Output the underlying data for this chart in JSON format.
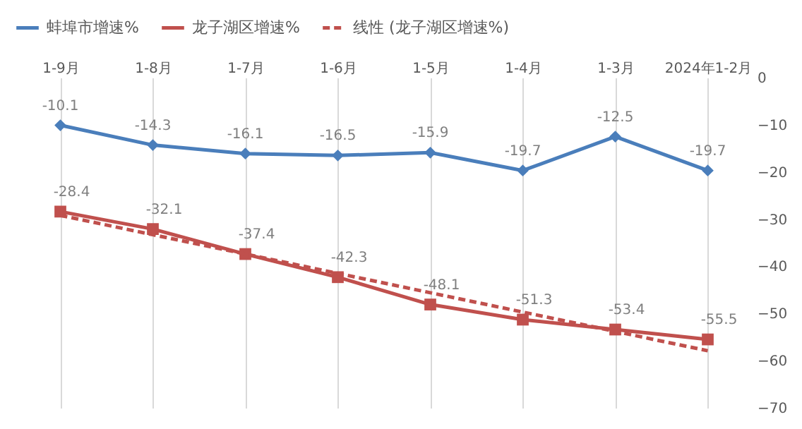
{
  "chart_data": {
    "type": "line",
    "categories": [
      "1-9月",
      "1-8月",
      "1-7月",
      "1-6月",
      "1-5月",
      "1-4月",
      "1-3月",
      "2024年1-2月"
    ],
    "series": [
      {
        "name": "蚌埠市增速%",
        "color": "#4a7ebb",
        "marker": "diamond",
        "line_style": "solid",
        "values": [
          -10.1,
          -14.3,
          -16.1,
          -16.5,
          -15.9,
          -19.7,
          -12.5,
          -19.7
        ],
        "value_labels": [
          "-10.1",
          "-14.3",
          "-16.1",
          "-16.5",
          "-15.9",
          "-19.7",
          "-12.5",
          "-19.7"
        ]
      },
      {
        "name": "龙子湖区增速%",
        "color": "#c0504d",
        "marker": "square",
        "line_style": "solid",
        "values": [
          -28.4,
          -32.1,
          -37.4,
          -42.3,
          -48.1,
          -51.3,
          -53.4,
          -55.5
        ],
        "value_labels": [
          "-28.4",
          "-32.1",
          "-37.4",
          "-42.3",
          "-48.1",
          "-51.3",
          "-53.4",
          "-55.5"
        ]
      },
      {
        "name": "线性 (龙子湖区增速%)",
        "color": "#c0504d",
        "marker": "none",
        "line_style": "dashed",
        "values": [
          -29.2,
          -33.3,
          -37.4,
          -41.5,
          -45.6,
          -49.7,
          -53.8,
          -57.9
        ]
      }
    ],
    "ylim": [
      -70,
      0
    ],
    "yticks": [
      0,
      -10,
      -20,
      -30,
      -40,
      -50,
      -60,
      -70
    ],
    "grid": "x",
    "legend": "top"
  }
}
